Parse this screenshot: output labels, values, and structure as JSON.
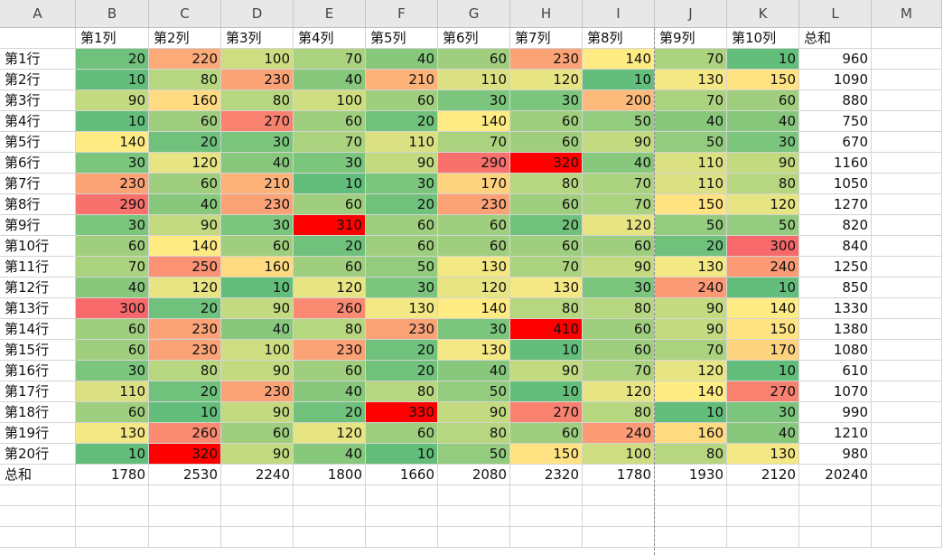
{
  "columns": [
    "A",
    "B",
    "C",
    "D",
    "E",
    "F",
    "G",
    "H",
    "I",
    "J",
    "K",
    "L",
    "M"
  ],
  "header_row": [
    "",
    "第1列",
    "第2列",
    "第3列",
    "第4列",
    "第5列",
    "第6列",
    "第7列",
    "第8列",
    "第9列",
    "第10列",
    "总和"
  ],
  "rows": [
    {
      "label": "第1行",
      "values": [
        20,
        220,
        100,
        70,
        40,
        60,
        230,
        140,
        70,
        10
      ],
      "total": 960
    },
    {
      "label": "第2行",
      "values": [
        10,
        80,
        230,
        40,
        210,
        110,
        120,
        10,
        130,
        150
      ],
      "total": 1090
    },
    {
      "label": "第3行",
      "values": [
        90,
        160,
        80,
        100,
        60,
        30,
        30,
        200,
        70,
        60
      ],
      "total": 880
    },
    {
      "label": "第4行",
      "values": [
        10,
        60,
        270,
        60,
        20,
        140,
        60,
        50,
        40,
        40
      ],
      "total": 750
    },
    {
      "label": "第5行",
      "values": [
        140,
        20,
        30,
        70,
        110,
        70,
        60,
        90,
        50,
        30
      ],
      "total": 670
    },
    {
      "label": "第6行",
      "values": [
        30,
        120,
        40,
        30,
        90,
        290,
        320,
        40,
        110,
        90
      ],
      "total": 1160
    },
    {
      "label": "第7行",
      "values": [
        230,
        60,
        210,
        10,
        30,
        170,
        80,
        70,
        110,
        80
      ],
      "total": 1050
    },
    {
      "label": "第8行",
      "values": [
        290,
        40,
        230,
        60,
        20,
        230,
        60,
        70,
        150,
        120
      ],
      "total": 1270
    },
    {
      "label": "第9行",
      "values": [
        30,
        90,
        30,
        310,
        60,
        60,
        20,
        120,
        50,
        50
      ],
      "total": 820
    },
    {
      "label": "第10行",
      "values": [
        60,
        140,
        60,
        20,
        60,
        60,
        60,
        60,
        20,
        300
      ],
      "total": 840
    },
    {
      "label": "第11行",
      "values": [
        70,
        250,
        160,
        60,
        50,
        130,
        70,
        90,
        130,
        240
      ],
      "total": 1250
    },
    {
      "label": "第12行",
      "values": [
        40,
        120,
        10,
        120,
        30,
        120,
        130,
        30,
        240,
        10
      ],
      "total": 850
    },
    {
      "label": "第13行",
      "values": [
        300,
        20,
        90,
        260,
        130,
        140,
        80,
        80,
        90,
        140
      ],
      "total": 1330
    },
    {
      "label": "第14行",
      "values": [
        60,
        230,
        40,
        80,
        230,
        30,
        410,
        60,
        90,
        150
      ],
      "total": 1380
    },
    {
      "label": "第15行",
      "values": [
        60,
        230,
        100,
        230,
        20,
        130,
        10,
        60,
        70,
        170
      ],
      "total": 1080
    },
    {
      "label": "第16行",
      "values": [
        30,
        80,
        90,
        60,
        20,
        40,
        90,
        70,
        120,
        10
      ],
      "total": 610
    },
    {
      "label": "第17行",
      "values": [
        110,
        20,
        230,
        40,
        80,
        50,
        10,
        120,
        140,
        270
      ],
      "total": 1070
    },
    {
      "label": "第18行",
      "values": [
        60,
        10,
        90,
        20,
        330,
        90,
        270,
        80,
        10,
        30
      ],
      "total": 990
    },
    {
      "label": "第19行",
      "values": [
        130,
        260,
        60,
        120,
        60,
        80,
        60,
        240,
        160,
        40
      ],
      "total": 1210
    },
    {
      "label": "第20行",
      "values": [
        10,
        320,
        90,
        40,
        10,
        50,
        150,
        100,
        80,
        130
      ],
      "total": 980
    }
  ],
  "totals_row": {
    "label": "总和",
    "values": [
      1780,
      2530,
      2240,
      1800,
      1660,
      2080,
      2320,
      1780,
      1930,
      2120
    ],
    "total": 20240
  },
  "colors": {
    "scale_low": "#63be7b",
    "scale_mid": "#ffeb84",
    "scale_high": "#f8696b",
    "highlight": "#ff0000",
    "header_bg": "#e8e8e8",
    "gridline": "#d4d4d4"
  },
  "highlighted_cells": [
    {
      "row": "第6行",
      "column": "第7列"
    },
    {
      "row": "第9行",
      "column": "第4列"
    },
    {
      "row": "第14行",
      "column": "第7列"
    },
    {
      "row": "第18行",
      "column": "第5列"
    },
    {
      "row": "第20行",
      "column": "第2列"
    }
  ]
}
